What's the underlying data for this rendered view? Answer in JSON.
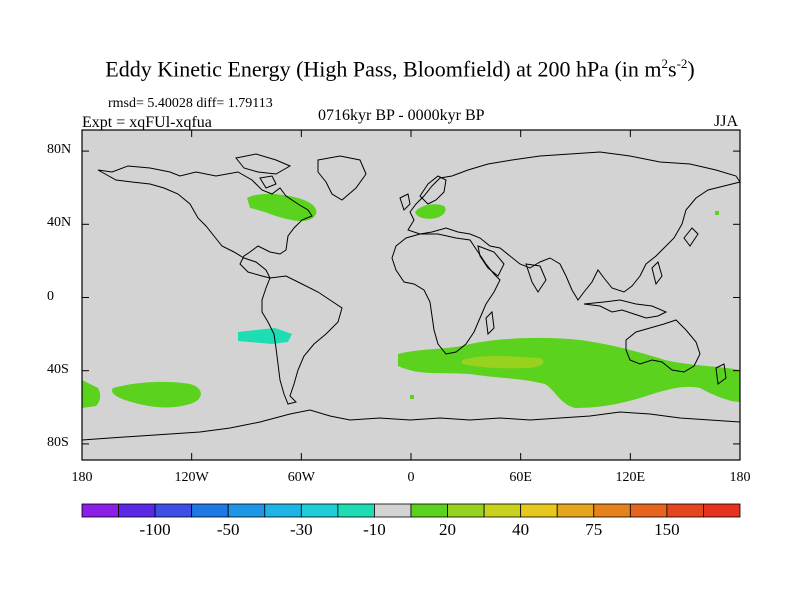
{
  "title": {
    "main": "Eddy Kinetic Energy (High Pass, Bloomfield) at 200 hPa (in m",
    "sup1": "2",
    "mid": "s",
    "sup2": "-2",
    "close": ")"
  },
  "stats": "rmsd= 5.40028 diff= 1.79113",
  "experiment": "Expt = xqFUl-xqfua",
  "period": "0716kyr BP - 0000kyr BP",
  "season": "JJA",
  "map": {
    "lat_ticks": [
      {
        "value": 80,
        "label": "80N"
      },
      {
        "value": 40,
        "label": "40N"
      },
      {
        "value": 0,
        "label": "0"
      },
      {
        "value": -40,
        "label": "40S"
      },
      {
        "value": -80,
        "label": "80S"
      }
    ],
    "lon_ticks": [
      {
        "value": -180,
        "label": "180"
      },
      {
        "value": -120,
        "label": "120W"
      },
      {
        "value": -60,
        "label": "60W"
      },
      {
        "value": 0,
        "label": "0"
      },
      {
        "value": 60,
        "label": "60E"
      },
      {
        "value": 120,
        "label": "120E"
      },
      {
        "value": 180,
        "label": "180"
      }
    ],
    "background_color": "#d3d3d3"
  },
  "colorbar": {
    "colors": [
      "#8c1ee6",
      "#5a28e6",
      "#3c50e6",
      "#1e78e6",
      "#1e96e6",
      "#1eb4e6",
      "#1ecdd7",
      "#1edcb4",
      "#d3d3d3",
      "#5ad21e",
      "#96d21e",
      "#c8d21e",
      "#e6c81e",
      "#e6a51e",
      "#e6821e",
      "#e6641e",
      "#e6461e",
      "#e6321e"
    ],
    "labels": [
      {
        "index": 2,
        "text": "-100"
      },
      {
        "index": 4,
        "text": "-50"
      },
      {
        "index": 6,
        "text": "-30"
      },
      {
        "index": 8,
        "text": "-10"
      },
      {
        "index": 10,
        "text": "20"
      },
      {
        "index": 12,
        "text": "40"
      },
      {
        "index": 14,
        "text": "75"
      },
      {
        "index": 16,
        "text": "150"
      }
    ]
  }
}
